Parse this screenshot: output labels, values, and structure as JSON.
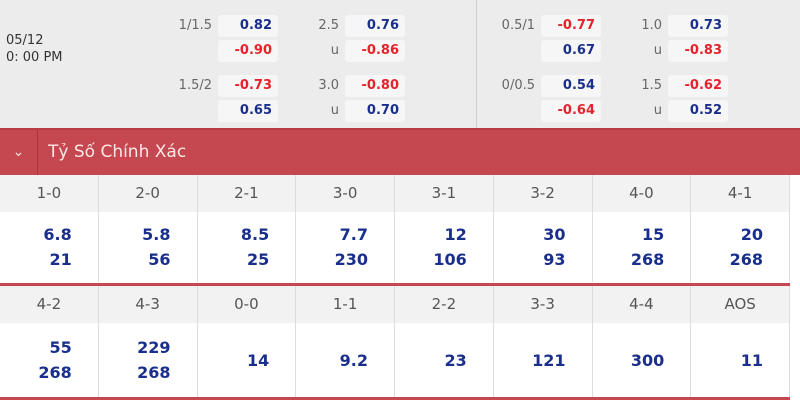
{
  "match": {
    "date": "05/12",
    "time": "0: 00 PM"
  },
  "odds_left": [
    {
      "hcap": "1/1.5",
      "hcap_home": "0.82",
      "hcap_away": "-0.90",
      "ou": "2.5",
      "ou_u": "u",
      "ou_over": "0.76",
      "ou_under": "-0.86"
    },
    {
      "hcap": "1.5/2",
      "hcap_home": "-0.73",
      "hcap_away": "0.65",
      "ou": "3.0",
      "ou_u": "u",
      "ou_over": "-0.80",
      "ou_under": "0.70"
    }
  ],
  "odds_right": [
    {
      "hcap": "0.5/1",
      "hcap_home": "-0.77",
      "hcap_away": "0.67",
      "ou": "1.0",
      "ou_u": "u",
      "ou_over": "0.73",
      "ou_under": "-0.83"
    },
    {
      "hcap": "0/0.5",
      "hcap_home": "0.54",
      "hcap_away": "-0.64",
      "ou": "1.5",
      "ou_u": "u",
      "ou_over": "-0.62",
      "ou_under": "0.52"
    }
  ],
  "section": {
    "title": "Tỷ Số Chính Xác",
    "icon": "chevron-down-icon"
  },
  "scores_row1": [
    {
      "score": "1-0",
      "a": "6.8",
      "b": "21"
    },
    {
      "score": "2-0",
      "a": "5.8",
      "b": "56"
    },
    {
      "score": "2-1",
      "a": "8.5",
      "b": "25"
    },
    {
      "score": "3-0",
      "a": "7.7",
      "b": "230"
    },
    {
      "score": "3-1",
      "a": "12",
      "b": "106"
    },
    {
      "score": "3-2",
      "a": "30",
      "b": "93"
    },
    {
      "score": "4-0",
      "a": "15",
      "b": "268"
    },
    {
      "score": "4-1",
      "a": "20",
      "b": "268"
    }
  ],
  "scores_row2": [
    {
      "score": "4-2",
      "a": "55",
      "b": "268"
    },
    {
      "score": "4-3",
      "a": "229",
      "b": "268"
    },
    {
      "score": "0-0",
      "a": "14"
    },
    {
      "score": "1-1",
      "a": "9.2"
    },
    {
      "score": "2-2",
      "a": "23"
    },
    {
      "score": "3-3",
      "a": "121"
    },
    {
      "score": "4-4",
      "a": "300"
    },
    {
      "score": "AOS",
      "a": "11"
    }
  ],
  "colors": {
    "positive": "#1a2f8c",
    "negative": "#e5222b",
    "header": "#c5474f"
  }
}
